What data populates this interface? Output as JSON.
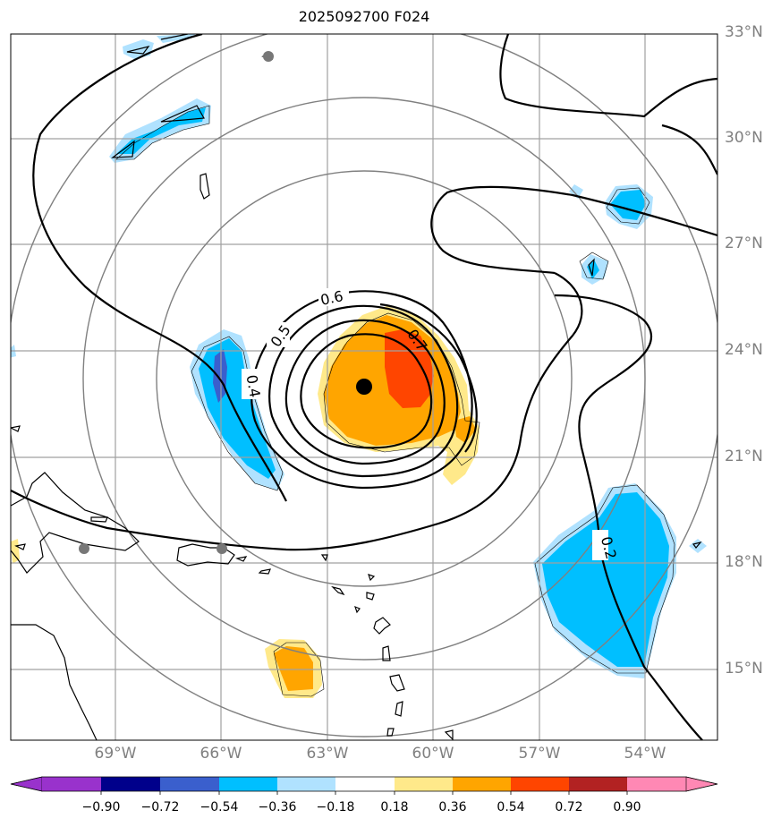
{
  "title": "2025092700 F024",
  "lat_labels": [
    "33°N",
    "30°N",
    "27°N",
    "24°N",
    "21°N",
    "18°N",
    "15°N"
  ],
  "lon_labels": [
    "69°W",
    "66°W",
    "63°W",
    "60°W",
    "57°W",
    "54°W"
  ],
  "contour_labels": [
    "0.6",
    "0.5",
    "0.4",
    "0.7",
    "0.2"
  ],
  "colorbar": {
    "ticks": [
      "−0.90",
      "−0.72",
      "−0.54",
      "−0.36",
      "−0.18",
      "0.18",
      "0.36",
      "0.54",
      "0.72",
      "0.90"
    ],
    "colors": [
      "#9932CC",
      "#00008B",
      "#3A5FCD",
      "#00BFFF",
      "#B0E2FF",
      "#FFFFFF",
      "#FFE98A",
      "#FFA500",
      "#FF4500",
      "#B22222",
      "#FF88B4"
    ]
  },
  "map": {
    "extent_lon": [
      -72,
      -52
    ],
    "extent_lat": [
      13,
      33
    ],
    "storm_center": {
      "lon": -62,
      "lat": 23
    }
  }
}
